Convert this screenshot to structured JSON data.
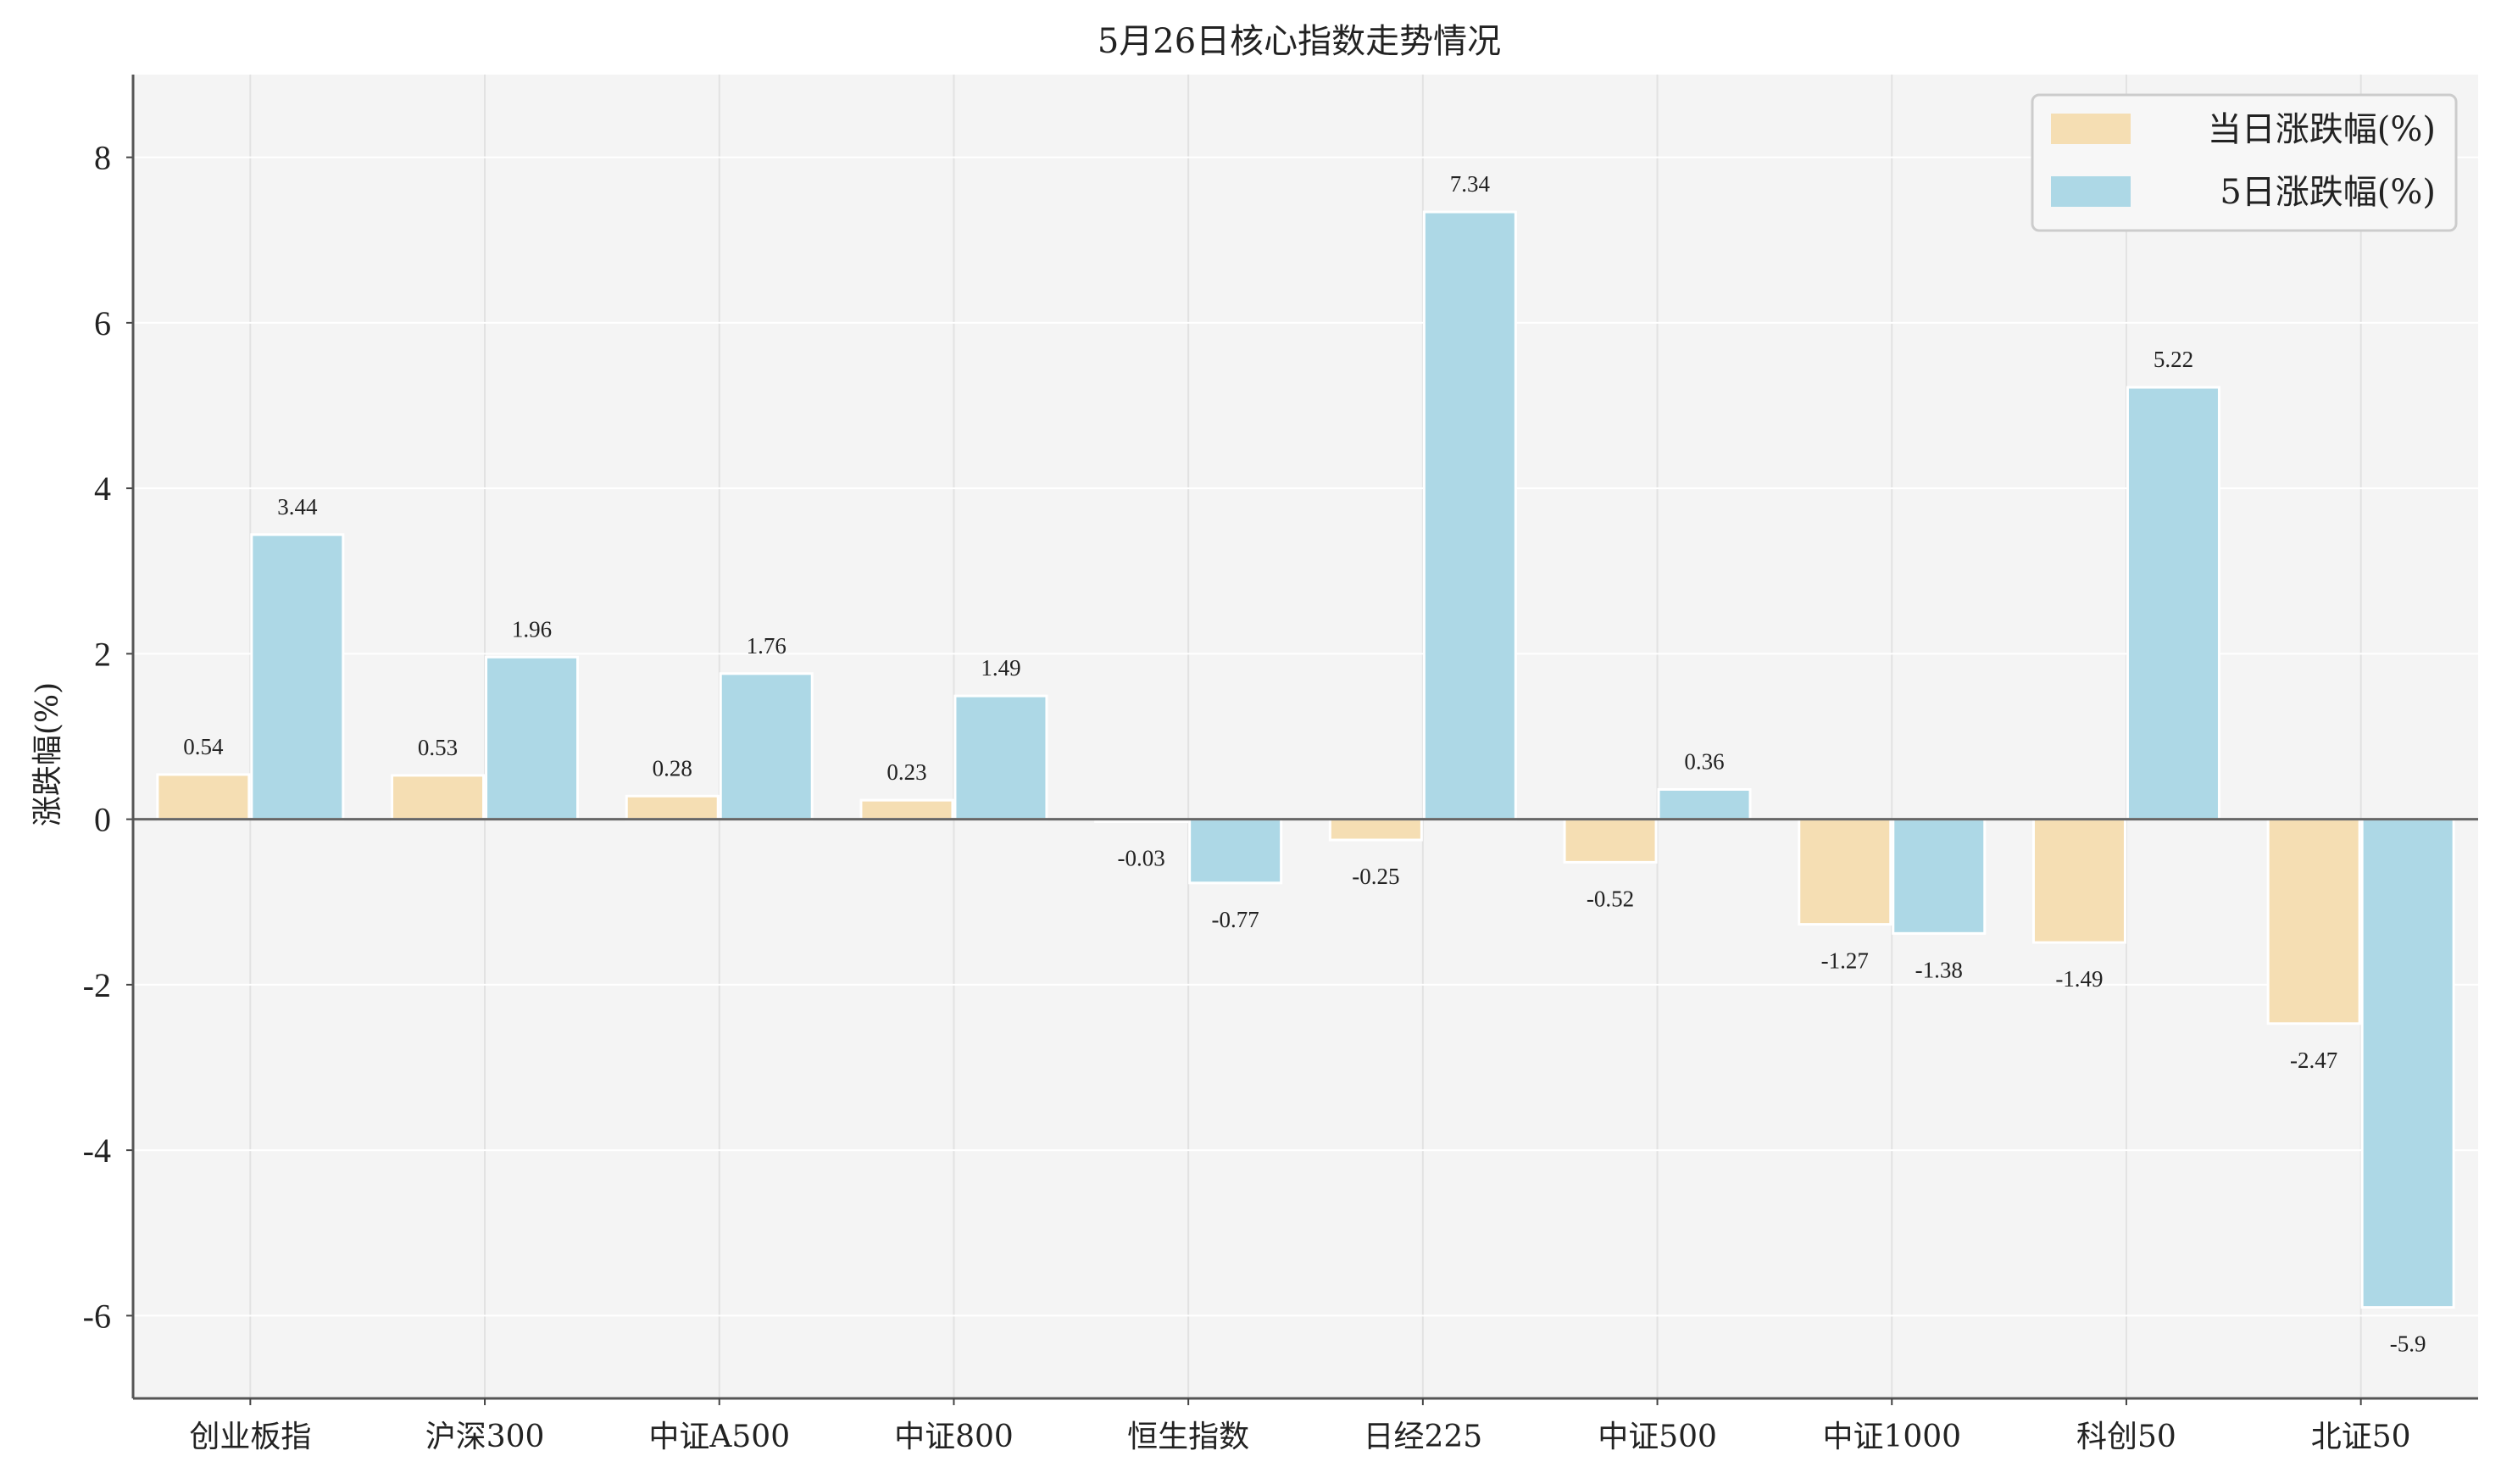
{
  "chart_data": {
    "type": "bar",
    "title": "5月26日核心指数走势情况",
    "xlabel": "",
    "ylabel": "涨跌幅(%)",
    "ylim": [
      -7,
      9
    ],
    "yticks": [
      -6,
      -4,
      -2,
      0,
      2,
      4,
      6,
      8
    ],
    "grid": true,
    "legend_position": "top-right",
    "categories": [
      "创业板指",
      "沪深300",
      "中证A500",
      "中证800",
      "恒生指数",
      "日经225",
      "中证500",
      "中证1000",
      "科创50",
      "北证50"
    ],
    "series": [
      {
        "name": "当日涨跌幅(%)",
        "color": "#f5deb3",
        "values": [
          0.54,
          0.53,
          0.28,
          0.23,
          -0.03,
          -0.25,
          -0.52,
          -1.27,
          -1.49,
          -2.47
        ],
        "labels": [
          "0.54",
          "0.53",
          "0.28",
          "0.23",
          "-0.03",
          "-0.25",
          "-0.52",
          "-1.27",
          "-1.49",
          "-2.47"
        ]
      },
      {
        "name": "5日涨跌幅(%)",
        "color": "#add8e6",
        "values": [
          3.44,
          1.96,
          1.76,
          1.49,
          -0.77,
          7.34,
          0.36,
          -1.38,
          5.22,
          -5.9
        ],
        "labels": [
          "3.44",
          "1.96",
          "1.76",
          "1.49",
          "-0.77",
          "7.34",
          "0.36",
          "-1.38",
          "5.22",
          "-5.9"
        ]
      }
    ]
  }
}
